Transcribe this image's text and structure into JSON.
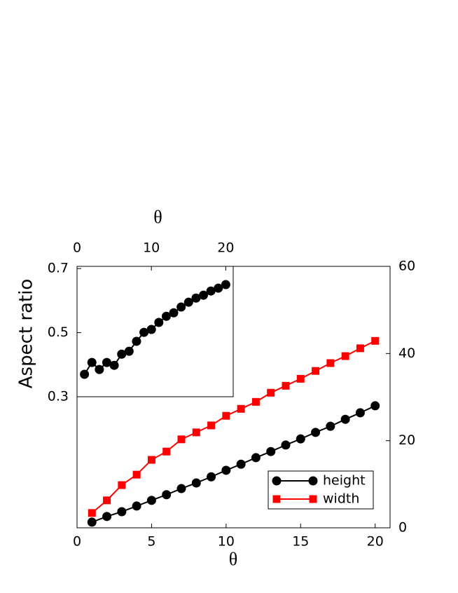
{
  "chart_data": [
    {
      "type": "line",
      "x_label": "θ",
      "x": [
        1,
        2,
        3,
        4,
        5,
        6,
        7,
        8,
        9,
        10,
        11,
        12,
        13,
        14,
        15,
        16,
        17,
        18,
        19,
        20
      ],
      "xlim": [
        0,
        21
      ],
      "xticks": [
        0,
        5,
        10,
        15,
        20
      ],
      "y2lim": [
        0,
        60
      ],
      "y2ticks": [
        0,
        20,
        40,
        60
      ],
      "legend": "lower right",
      "series": [
        {
          "name": "height",
          "color": "#000000",
          "marker": "circle",
          "axis": "y2",
          "values": [
            1.3,
            2.6,
            3.7,
            5.0,
            6.3,
            7.6,
            9.0,
            10.3,
            11.7,
            13.2,
            14.6,
            16.1,
            17.5,
            19.0,
            20.4,
            21.9,
            23.3,
            24.9,
            26.4,
            28.0
          ]
        },
        {
          "name": "width",
          "color": "#ff0000",
          "marker": "square",
          "axis": "y2",
          "values": [
            3.4,
            6.3,
            9.8,
            12.2,
            15.6,
            17.5,
            20.3,
            21.9,
            23.5,
            25.7,
            27.3,
            28.9,
            31.0,
            32.6,
            34.2,
            36.0,
            37.8,
            39.4,
            41.2,
            42.9
          ]
        }
      ]
    },
    {
      "type": "line",
      "x_label": "θ",
      "y_label": "Aspect ratio",
      "x": [
        1,
        2,
        3,
        4,
        5,
        6,
        7,
        8,
        9,
        10,
        11,
        12,
        13,
        14,
        15,
        16,
        17,
        18,
        19,
        20
      ],
      "xlim": [
        0,
        21
      ],
      "xticks": [
        0,
        10,
        20
      ],
      "ylim": [
        0.3,
        0.707
      ],
      "yticks": [
        0.3,
        0.5,
        0.7
      ],
      "series": [
        {
          "color": "#000000",
          "marker": "circle",
          "values": [
            0.37,
            0.407,
            0.385,
            0.407,
            0.398,
            0.433,
            0.442,
            0.473,
            0.501,
            0.51,
            0.532,
            0.551,
            0.562,
            0.58,
            0.595,
            0.608,
            0.617,
            0.63,
            0.639,
            0.65
          ]
        }
      ]
    }
  ]
}
